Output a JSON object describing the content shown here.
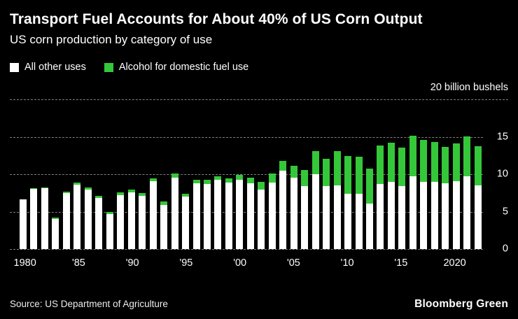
{
  "chart_data": {
    "type": "bar",
    "stacked": true,
    "title": "Transport Fuel Accounts for About 40% of US Corn Output",
    "subtitle": "US corn production by category of use",
    "unit_label": "20 billion bushels",
    "ylabel": "billion bushels",
    "xlabel": "",
    "ylim": [
      0,
      20
    ],
    "grid": "dashed horizontal",
    "legend_position": "top-left",
    "y_gridlines": [
      {
        "value": 20,
        "label": "",
        "full_width": true
      },
      {
        "value": 15,
        "label": "15",
        "full_width": false
      },
      {
        "value": 10,
        "label": "10",
        "full_width": false
      },
      {
        "value": 5,
        "label": "5",
        "full_width": false
      },
      {
        "value": 0,
        "label": "0",
        "full_width": false
      }
    ],
    "x_tick_labels": [
      {
        "index": 0,
        "label": "1980"
      },
      {
        "index": 5,
        "label": "'85"
      },
      {
        "index": 10,
        "label": "'90"
      },
      {
        "index": 15,
        "label": "'95"
      },
      {
        "index": 20,
        "label": "'00"
      },
      {
        "index": 25,
        "label": "'05"
      },
      {
        "index": 30,
        "label": "'10"
      },
      {
        "index": 35,
        "label": "'15"
      },
      {
        "index": 40,
        "label": "2020"
      }
    ],
    "x": [
      1980,
      1981,
      1982,
      1983,
      1984,
      1985,
      1986,
      1987,
      1988,
      1989,
      1990,
      1991,
      1992,
      1993,
      1994,
      1995,
      1996,
      1997,
      1998,
      1999,
      2000,
      2001,
      2002,
      2003,
      2004,
      2005,
      2006,
      2007,
      2008,
      2009,
      2010,
      2011,
      2012,
      2013,
      2014,
      2015,
      2016,
      2017,
      2018,
      2019,
      2020,
      2021,
      2022
    ],
    "series": [
      {
        "name": "All other uses",
        "color": "#ffffff",
        "values": [
          6.6,
          8.05,
          8.11,
          4.01,
          7.44,
          8.61,
          7.94,
          6.83,
          4.64,
          7.21,
          7.58,
          7.07,
          9.05,
          5.88,
          9.52,
          7.0,
          8.8,
          8.73,
          9.23,
          8.86,
          9.29,
          8.79,
          7.97,
          8.92,
          10.49,
          9.51,
          8.41,
          9.99,
          8.38,
          8.5,
          7.43,
          7.36,
          6.12,
          8.71,
          9.01,
          8.38,
          9.72,
          9.01,
          8.96,
          8.76,
          9.08,
          9.74,
          8.55
        ]
      },
      {
        "name": "Alcohol for domestic fuel use",
        "color": "#35c73a",
        "values": [
          0.04,
          0.07,
          0.13,
          0.16,
          0.23,
          0.27,
          0.29,
          0.3,
          0.29,
          0.32,
          0.35,
          0.4,
          0.43,
          0.46,
          0.53,
          0.4,
          0.43,
          0.48,
          0.53,
          0.57,
          0.63,
          0.71,
          1.0,
          1.17,
          1.32,
          1.6,
          2.12,
          3.05,
          3.71,
          4.59,
          5.02,
          5.0,
          4.64,
          5.12,
          5.21,
          5.22,
          5.43,
          5.6,
          5.38,
          4.86,
          5.03,
          5.33,
          5.18
        ]
      }
    ]
  },
  "colors": {
    "background": "#000000",
    "gridline": "#828282",
    "bar_white": "#ffffff",
    "bar_green": "#35c73a"
  },
  "footer": {
    "source": "Source: US Department of Agriculture",
    "brand": "Bloomberg Green"
  }
}
